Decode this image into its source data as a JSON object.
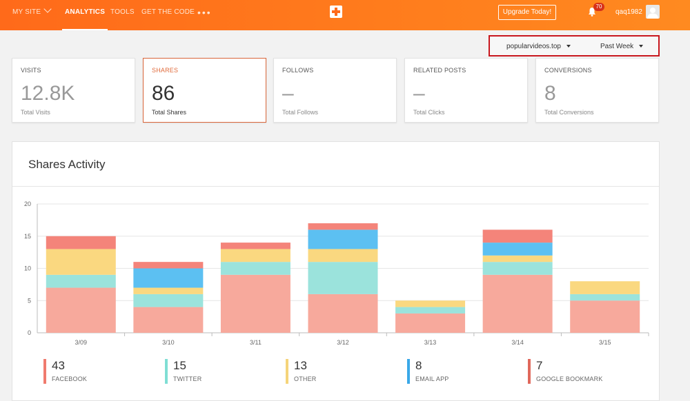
{
  "nav": {
    "my_site": "MY SITE",
    "analytics": "ANALYTICS",
    "tools": "TOOLS",
    "get_code": "GET THE CODE",
    "more": "•••",
    "upgrade": "Upgrade Today!",
    "notifications": "70",
    "username": "qaq1982"
  },
  "filters": {
    "site": "popularvideos.top",
    "period": "Past Week"
  },
  "cards": [
    {
      "title": "VISITS",
      "value": "12.8K",
      "sub": "Total Visits"
    },
    {
      "title": "SHARES",
      "value": "86",
      "sub": "Total Shares"
    },
    {
      "title": "FOLLOWS",
      "value": "–",
      "sub": "Total Follows"
    },
    {
      "title": "RELATED POSTS",
      "value": "–",
      "sub": "Total Clicks"
    },
    {
      "title": "CONVERSIONS",
      "value": "8",
      "sub": "Total Conversions"
    }
  ],
  "panel": {
    "title": "Shares Activity"
  },
  "colors": {
    "accent": "#ff6a1a",
    "facebook": "#f7a99c",
    "twitter": "#9be3dc",
    "other": "#fad880",
    "email_app": "#5cc0f2",
    "google_bookmark": "#f4847a"
  },
  "legend": [
    {
      "value": "43",
      "name": "FACEBOOK",
      "color": "#f07b6e"
    },
    {
      "value": "15",
      "name": "TWITTER",
      "color": "#7fded4"
    },
    {
      "value": "13",
      "name": "OTHER",
      "color": "#f5d47a"
    },
    {
      "value": "8",
      "name": "EMAIL APP",
      "color": "#3aa8e8"
    },
    {
      "value": "7",
      "name": "GOOGLE BOOKMARK",
      "color": "#e0685c"
    }
  ],
  "chart_data": {
    "type": "bar",
    "stacked": true,
    "categories": [
      "3/09",
      "3/10",
      "3/11",
      "3/12",
      "3/13",
      "3/14",
      "3/15"
    ],
    "series": [
      {
        "name": "FACEBOOK",
        "color": "#f7a99c",
        "values": [
          7,
          4,
          9,
          6,
          3,
          9,
          5
        ]
      },
      {
        "name": "TWITTER",
        "color": "#9be3dc",
        "values": [
          2,
          2,
          2,
          5,
          1,
          2,
          1
        ]
      },
      {
        "name": "OTHER",
        "color": "#fad880",
        "values": [
          4,
          1,
          2,
          2,
          1,
          1,
          2
        ]
      },
      {
        "name": "EMAIL APP",
        "color": "#5cc0f2",
        "values": [
          0,
          3,
          0,
          3,
          0,
          2,
          0
        ]
      },
      {
        "name": "GOOGLE BOOKMARK",
        "color": "#f4847a",
        "values": [
          2,
          1,
          1,
          1,
          0,
          2,
          0
        ]
      }
    ],
    "yticks": [
      0,
      5,
      10,
      15,
      20
    ],
    "ylim": [
      0,
      20
    ],
    "grid": true
  }
}
